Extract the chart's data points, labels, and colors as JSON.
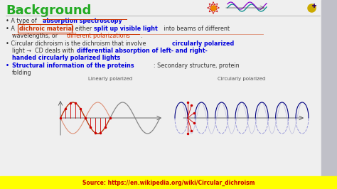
{
  "bg_color": "#d0d0d8",
  "main_bg": "#f0f0f0",
  "title": "Background",
  "title_color": "#22aa22",
  "title_fontsize": 13,
  "bullet_dark": "#000080",
  "highlight_blue": "#0000ee",
  "highlight_orange": "#cc3300",
  "footer_bg": "#ffff00",
  "footer_text": "Source: https://en.wikipedia.org/wiki/Circular_dichroism",
  "footer_color": "#cc0000",
  "footer_fontsize": 5.5,
  "label_linearly": "Linearly polarized",
  "label_circularly": "Circularly polarized",
  "label_color": "#555555",
  "label_fontsize": 5,
  "sidebar_color": "#b0b0b8",
  "right_strip_color": "#c0c0c8"
}
